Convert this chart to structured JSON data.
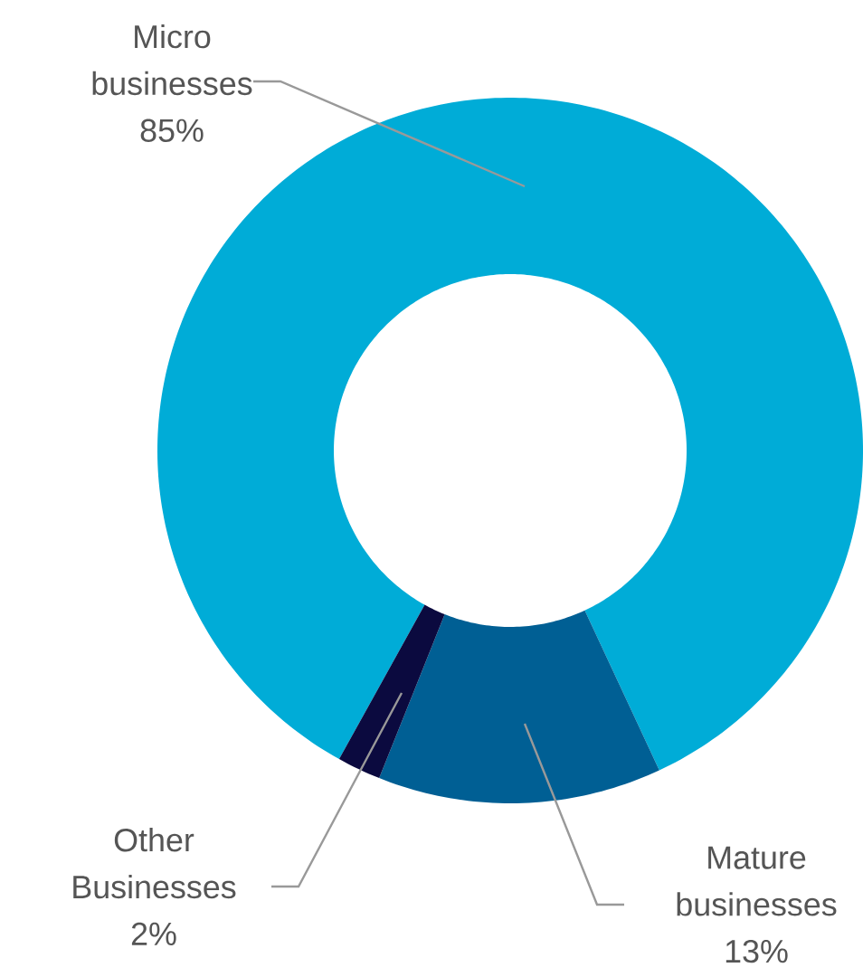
{
  "chart_data": {
    "type": "donut",
    "categories": [
      "Micro businesses",
      "Mature businesses",
      "Other Businesses"
    ],
    "values": [
      85,
      13,
      2
    ],
    "value_labels": [
      "85%",
      "13%",
      "2%"
    ],
    "colors": [
      "#00acd7",
      "#005f94",
      "#0b0a3f"
    ]
  }
}
